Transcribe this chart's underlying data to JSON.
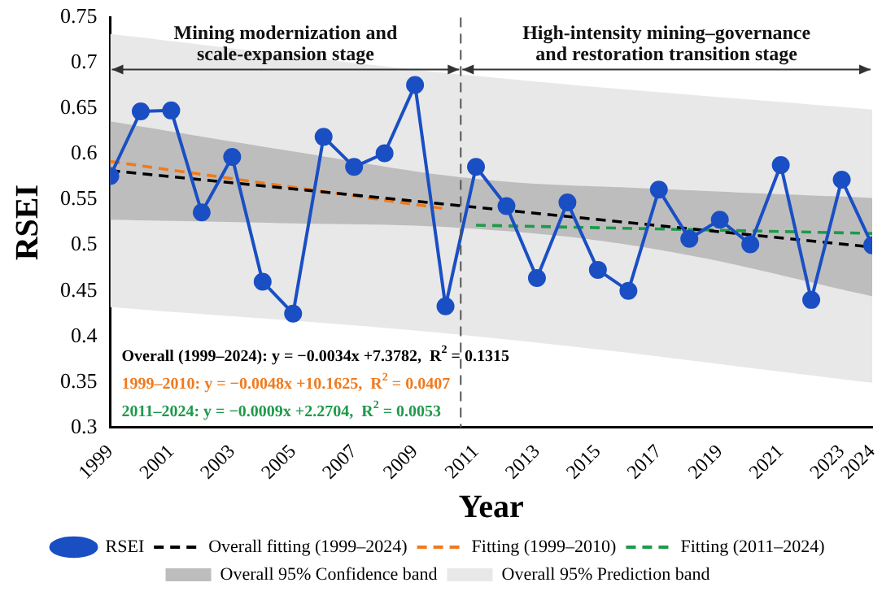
{
  "chart_data": {
    "type": "line",
    "xlabel": "Year",
    "ylabel": "RSEI",
    "x": [
      1999,
      2000,
      2001,
      2002,
      2003,
      2004,
      2005,
      2006,
      2007,
      2008,
      2009,
      2010,
      2011,
      2012,
      2013,
      2014,
      2015,
      2016,
      2017,
      2018,
      2019,
      2020,
      2021,
      2022,
      2023,
      2024
    ],
    "series": [
      {
        "name": "RSEI",
        "color": "#1a4fc4",
        "marker": "circle",
        "values": [
          0.576,
          0.647,
          0.648,
          0.536,
          0.597,
          0.46,
          0.425,
          0.619,
          0.586,
          0.601,
          0.676,
          0.433,
          0.586,
          0.543,
          0.464,
          0.547,
          0.473,
          0.45,
          0.561,
          0.507,
          0.528,
          0.501,
          0.588,
          0.44,
          0.572,
          0.5
        ]
      },
      {
        "name": "Overall fitting (1999–2024)",
        "color": "#000000",
        "x": [
          1999,
          2024
        ],
        "values": [
          0.582,
          0.498
        ],
        "line_style": "dashed",
        "marker": "none"
      },
      {
        "name": "Fitting (1999–2010)",
        "color": "#f07a1e",
        "x": [
          1999,
          2010
        ],
        "values": [
          0.592,
          0.54
        ],
        "line_style": "dashed",
        "marker": "none"
      },
      {
        "name": "Fitting (2011–2024)",
        "color": "#1e9a4a",
        "x": [
          2011,
          2024
        ],
        "values": [
          0.522,
          0.513
        ],
        "line_style": "dashed",
        "marker": "none"
      },
      {
        "name": "Overall 95% Confidence band",
        "color": "#bdbdbd",
        "marker": "none",
        "x": [
          1999,
          2005,
          2011,
          2017,
          2024
        ],
        "values": [
          null,
          null,
          null,
          null,
          null
        ],
        "lower": [
          0.528,
          0.524,
          0.518,
          0.495,
          0.444
        ],
        "upper": [
          0.636,
          0.603,
          0.573,
          0.562,
          0.552
        ]
      },
      {
        "name": "Overall 95% Prediction band",
        "color": "#e8e8e8",
        "marker": "none",
        "x": [
          1999,
          2011,
          2024
        ],
        "values": [
          null,
          null,
          null
        ],
        "lower": [
          0.432,
          0.4,
          0.349
        ],
        "upper": [
          0.732,
          0.686,
          0.649
        ]
      }
    ],
    "xlim": [
      1999,
      2024
    ],
    "xticks": [
      1999,
      2001,
      2003,
      2005,
      2007,
      2009,
      2011,
      2013,
      2015,
      2017,
      2019,
      2021,
      2023,
      2024
    ],
    "ylim": [
      0.3,
      0.75
    ],
    "yticks": [
      0.3,
      0.35,
      0.4,
      0.45,
      0.5,
      0.55,
      0.6,
      0.65,
      0.7,
      0.75
    ],
    "ref_lines": [
      {
        "axis": "x",
        "value": 2010.5,
        "color": "#555555",
        "line_style": "dashed"
      }
    ],
    "annotations": [
      "Mining modernization and scale-expansion stage",
      "High-intensity mining–governance and restoration transition stage",
      "Overall (1999–2024): y = −0.0034x +7.3782,  R$^{2}$ = 0.1315",
      "1999–2010: y = −0.0048x +10.1625,  R$^{2}$ = 0.0407",
      "2011–2024: y = −0.0009x +2.2704,  R$^{2}$ = 0.0053"
    ],
    "grid": false,
    "legend": "bottom"
  }
}
